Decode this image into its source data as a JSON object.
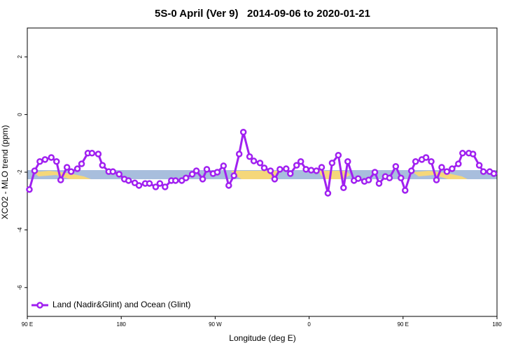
{
  "chart_data": {
    "type": "line",
    "title": "5S-0 April (Ver 9)   2014-09-06 to 2020-01-21",
    "x_label": "Longitude (deg E)",
    "y_label": "XCO2 - MLO trend (ppm)",
    "x": [
      92,
      97,
      102,
      107,
      113,
      118,
      122,
      128,
      132,
      138,
      142,
      148,
      152,
      158,
      162,
      168,
      172,
      178,
      183,
      187,
      193,
      197,
      203,
      207,
      213,
      217,
      222,
      228,
      232,
      238,
      242,
      248,
      252,
      258,
      262,
      268,
      272,
      278,
      283,
      288,
      293,
      297,
      303,
      307,
      313,
      317,
      323,
      327,
      332,
      338,
      342,
      348,
      352,
      357,
      362,
      367,
      372,
      378,
      382,
      388,
      393,
      397,
      403,
      407,
      413,
      417,
      423,
      427,
      433,
      437,
      443,
      448,
      452,
      458,
      462,
      468,
      472,
      477,
      482,
      487,
      492,
      497,
      503,
      507,
      513,
      517,
      523,
      527,
      533,
      537
    ],
    "series": [
      {
        "name": "Land (Nadir&Glint) and Ocean (Glint)",
        "color": "#a020f0",
        "values": [
          -2.6,
          -1.95,
          -1.63,
          -1.56,
          -1.49,
          -1.63,
          -2.27,
          -1.83,
          -1.98,
          -1.88,
          -1.71,
          -1.34,
          -1.34,
          -1.37,
          -1.76,
          -1.98,
          -1.98,
          -2.07,
          -2.24,
          -2.29,
          -2.37,
          -2.46,
          -2.39,
          -2.39,
          -2.51,
          -2.39,
          -2.51,
          -2.29,
          -2.29,
          -2.29,
          -2.2,
          -2.07,
          -1.95,
          -2.24,
          -1.9,
          -2.05,
          -2.0,
          -1.78,
          -2.46,
          -2.12,
          -1.37,
          -0.61,
          -1.46,
          -1.61,
          -1.68,
          -1.85,
          -1.95,
          -2.24,
          -1.9,
          -1.88,
          -2.05,
          -1.76,
          -1.63,
          -1.9,
          -1.93,
          -1.95,
          -1.83,
          -2.73,
          -1.68,
          -1.41,
          -2.54,
          -1.63,
          -2.29,
          -2.22,
          -2.32,
          -2.27,
          -2.0,
          -2.39,
          -2.15,
          -2.2,
          -1.8,
          -2.2,
          -2.63,
          -1.95,
          -1.63,
          -1.56,
          -1.49,
          -1.63,
          -2.27,
          -1.83,
          -1.98,
          -1.88,
          -1.71,
          -1.34,
          -1.34,
          -1.37,
          -1.76,
          -1.98,
          -1.98,
          -2.05
        ]
      }
    ],
    "xlim": [
      90,
      540
    ],
    "ylim": [
      -7,
      3
    ],
    "xticks": [
      {
        "value": 90,
        "label": "90 E"
      },
      180,
      {
        "value": 270,
        "label": "90 W"
      },
      {
        "value": 360,
        "label": "0"
      },
      {
        "value": 450,
        "label": "90 E"
      },
      {
        "value": 540,
        "label": "180"
      }
    ],
    "yticks": [
      -6,
      -4,
      -2,
      0,
      2
    ],
    "legend": "bottom-left"
  }
}
